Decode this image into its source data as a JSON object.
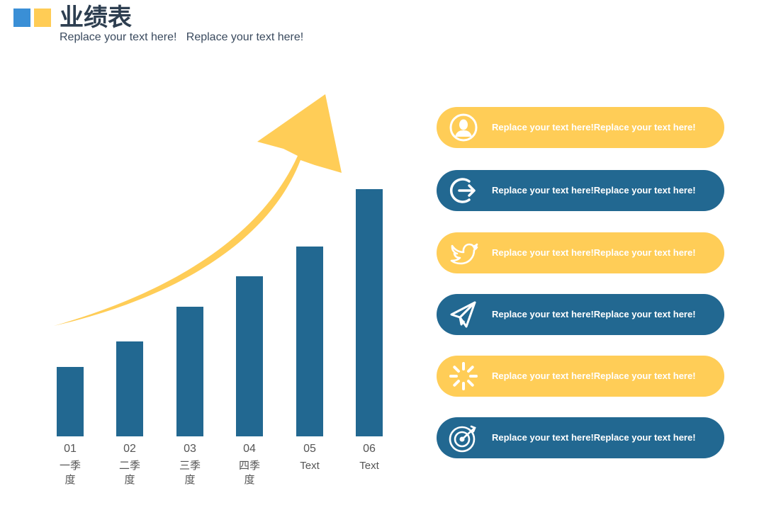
{
  "header": {
    "title": "业绩表",
    "subtitle": "Replace your text here!   Replace your text here!",
    "accent_colors": [
      "#3a8fd6",
      "#ffcc55"
    ]
  },
  "chart_data": {
    "type": "bar",
    "categories": [
      {
        "num": "01",
        "label": "一季度"
      },
      {
        "num": "02",
        "label": "二季度"
      },
      {
        "num": "03",
        "label": "三季度"
      },
      {
        "num": "04",
        "label": "四季度"
      },
      {
        "num": "05",
        "label": "Text"
      },
      {
        "num": "06",
        "label": "Text"
      }
    ],
    "values": [
      98,
      134,
      183,
      226,
      268,
      349
    ],
    "ylim": [
      0,
      349
    ],
    "bar_color": "#226891",
    "arrow_color": "#ffcd57",
    "grid": false,
    "title": "",
    "xlabel": "",
    "ylabel": ""
  },
  "list": {
    "items": [
      {
        "icon": "user-icon",
        "text": "Replace your text here!Replace your text here!",
        "color": "yellow"
      },
      {
        "icon": "logout-icon",
        "text": "Replace your text here!Replace your text here!",
        "color": "blue"
      },
      {
        "icon": "twitter-bird-icon",
        "text": "Replace your text here!Replace your text here!",
        "color": "yellow"
      },
      {
        "icon": "paper-plane-icon",
        "text": "Replace your text here!Replace your text here!",
        "color": "blue"
      },
      {
        "icon": "loading-spinner-icon",
        "text": "Replace your text here!Replace your text here!",
        "color": "yellow"
      },
      {
        "icon": "target-icon",
        "text": "Replace your text here!Replace your text here!",
        "color": "blue"
      }
    ]
  }
}
